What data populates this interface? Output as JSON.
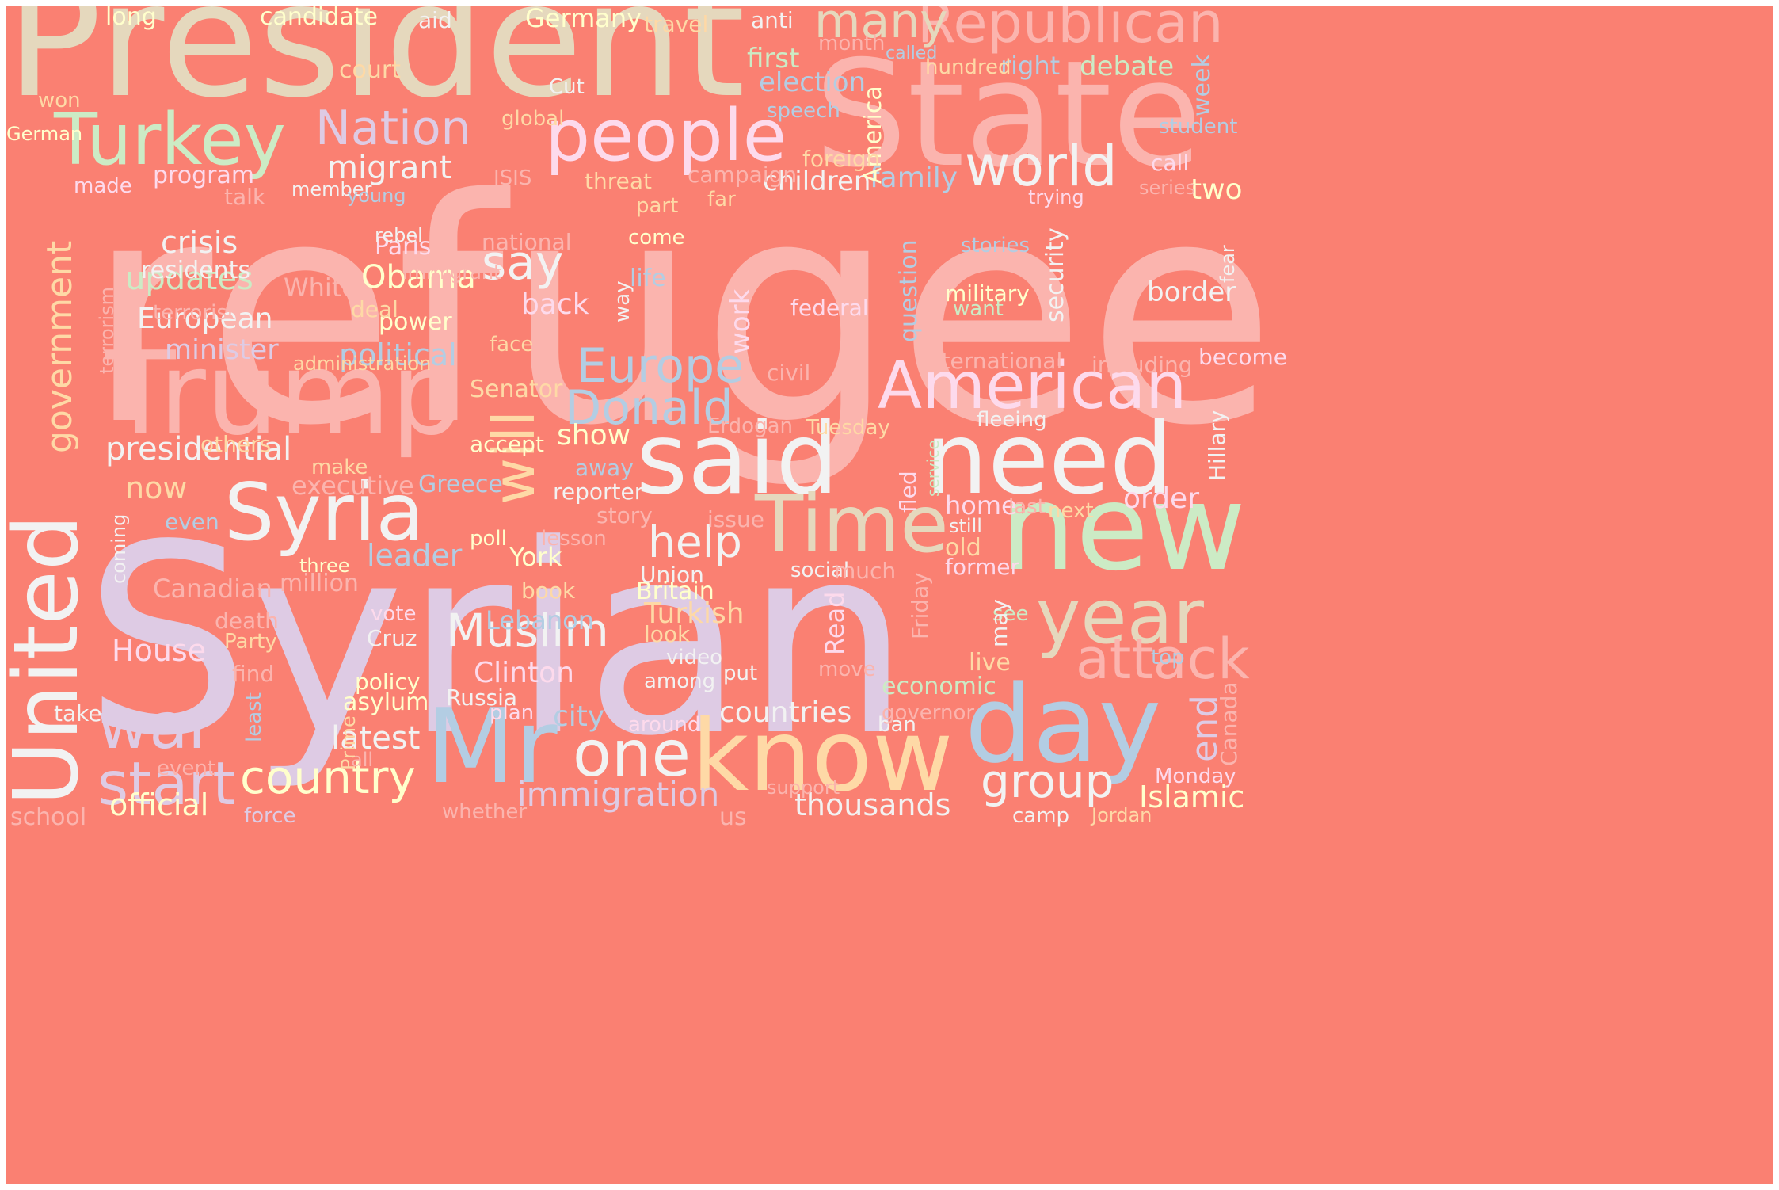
{
  "words": [
    {
      "text": "refugee",
      "color": "#fbb4ae"
    },
    {
      "text": "Syrian",
      "color": "#decbe4"
    },
    {
      "text": "President",
      "color": "#e5d8bd"
    },
    {
      "text": "State",
      "color": "#fbb4ae"
    },
    {
      "text": "Trump",
      "color": "#fbb4ae"
    },
    {
      "text": "new",
      "color": "#ccebc5"
    },
    {
      "text": "need",
      "color": "#f2f2f2"
    },
    {
      "text": "said",
      "color": "#f2f2f2"
    },
    {
      "text": "know",
      "color": "#fed9a6"
    },
    {
      "text": "day",
      "color": "#b3cde3"
    },
    {
      "text": "Mr",
      "color": "#b3cde3"
    },
    {
      "text": "United",
      "color": "#f2f2f2"
    },
    {
      "text": "Syria",
      "color": "#f2f2f2"
    },
    {
      "text": "Time",
      "color": "#e5d8bd"
    },
    {
      "text": "American",
      "color": "#fddaec"
    },
    {
      "text": "people",
      "color": "#fddaec"
    },
    {
      "text": "year",
      "color": "#e5d8bd"
    },
    {
      "text": "Turkey",
      "color": "#ccebc5"
    },
    {
      "text": "will",
      "color": "#fed9a6"
    },
    {
      "text": "attack",
      "color": "#fbb4ae"
    },
    {
      "text": "war",
      "color": "#decbe4"
    },
    {
      "text": "start",
      "color": "#decbe4"
    },
    {
      "text": "one",
      "color": "#f2f2f2"
    },
    {
      "text": "world",
      "color": "#f2f2f2"
    },
    {
      "text": "Republican",
      "color": "#fbb4ae"
    },
    {
      "text": "Muslim",
      "color": "#f2f2f2"
    },
    {
      "text": "country",
      "color": "#ffffcc"
    },
    {
      "text": "Europe",
      "color": "#b3cde3"
    },
    {
      "text": "Donald",
      "color": "#b3cde3"
    },
    {
      "text": "Nation",
      "color": "#decbe4"
    },
    {
      "text": "many",
      "color": "#e5d8bd"
    },
    {
      "text": "group",
      "color": "#f2f2f2"
    },
    {
      "text": "government",
      "color": "#fed9a6"
    },
    {
      "text": "say",
      "color": "#f2f2f2"
    },
    {
      "text": "help",
      "color": "#f2f2f2"
    },
    {
      "text": "end",
      "color": "#decbe4"
    },
    {
      "text": "presidential",
      "color": "#f2f2f2"
    },
    {
      "text": "immigration",
      "color": "#decbe4"
    },
    {
      "text": "latest",
      "color": "#f2f2f2"
    },
    {
      "text": "Clinton",
      "color": "#fddaec"
    },
    {
      "text": "updates",
      "color": "#ccebc5"
    },
    {
      "text": "Obama",
      "color": "#ffffcc"
    },
    {
      "text": "migrant",
      "color": "#f2f2f2"
    },
    {
      "text": "crisis",
      "color": "#f2f2f2"
    },
    {
      "text": "thousands",
      "color": "#f2f2f2"
    },
    {
      "text": "official",
      "color": "#ffffcc"
    },
    {
      "text": "Islamic",
      "color": "#ffffcc"
    },
    {
      "text": "countries",
      "color": "#f2f2f2"
    },
    {
      "text": "House",
      "color": "#fddaec"
    },
    {
      "text": "Turkish",
      "color": "#fed9a6"
    },
    {
      "text": "European",
      "color": "#f2f2f2"
    },
    {
      "text": "political",
      "color": "#b3cde3"
    },
    {
      "text": "minister",
      "color": "#decbe4"
    },
    {
      "text": "leader",
      "color": "#b3cde3"
    },
    {
      "text": "family",
      "color": "#b3cde3"
    },
    {
      "text": "border",
      "color": "#f2f2f2"
    },
    {
      "text": "order",
      "color": "#fddaec"
    },
    {
      "text": "now",
      "color": "#fed9a6"
    },
    {
      "text": "back",
      "color": "#fddaec"
    },
    {
      "text": "city",
      "color": "#b3cde3"
    },
    {
      "text": "show",
      "color": "#ffffcc"
    },
    {
      "text": "two",
      "color": "#ffffcc"
    },
    {
      "text": "debate",
      "color": "#ccebc5"
    },
    {
      "text": "first",
      "color": "#ccebc5"
    },
    {
      "text": "election",
      "color": "#b3cde3"
    },
    {
      "text": "children",
      "color": "#f2f2f2"
    },
    {
      "text": "work",
      "color": "#fddaec"
    },
    {
      "text": "million",
      "color": "#fbb4ae"
    },
    {
      "text": "York",
      "color": "#ffffcc"
    },
    {
      "text": "home",
      "color": "#fddaec"
    },
    {
      "text": "Read",
      "color": "#fddaec"
    },
    {
      "text": "week",
      "color": "#b3cde3"
    },
    {
      "text": "right",
      "color": "#b3cde3"
    },
    {
      "text": "America",
      "color": "#ffffcc"
    },
    {
      "text": "Germany",
      "color": "#ffffcc"
    },
    {
      "text": "candidate",
      "color": "#ffffcc"
    },
    {
      "text": "long",
      "color": "#ffffcc"
    },
    {
      "text": "power",
      "color": "#ffffcc"
    },
    {
      "text": "Paris",
      "color": "#fddaec"
    },
    {
      "text": "White",
      "color": "#fbb4ae"
    },
    {
      "text": "program",
      "color": "#fddaec"
    },
    {
      "text": "security",
      "color": "#f2f2f2"
    },
    {
      "text": "Hillary",
      "color": "#f2f2f2"
    },
    {
      "text": "Canada",
      "color": "#fbb4ae"
    },
    {
      "text": "Canadian",
      "color": "#fbb4ae"
    },
    {
      "text": "Lebanon",
      "color": "#b3cde3"
    },
    {
      "text": "Greece",
      "color": "#b3cde3"
    },
    {
      "text": "reporter",
      "color": "#f2f2f2"
    },
    {
      "text": "Russia",
      "color": "#f2f2f2"
    },
    {
      "text": "policy",
      "color": "#ffffcc"
    },
    {
      "text": "asylum",
      "color": "#ffffcc"
    },
    {
      "text": "plan",
      "color": "#fddaec"
    },
    {
      "text": "economic",
      "color": "#ccebc5"
    },
    {
      "text": "ban",
      "color": "#f2f2f2"
    },
    {
      "text": "live",
      "color": "#fed9a6"
    },
    {
      "text": "old",
      "color": "#fed9a6"
    },
    {
      "text": "former",
      "color": "#fddaec"
    },
    {
      "text": "look",
      "color": "#fed9a6"
    },
    {
      "text": "Britain",
      "color": "#ffffcc"
    },
    {
      "text": "Union",
      "color": "#f2f2f2"
    },
    {
      "text": "Senator",
      "color": "#fed9a6"
    },
    {
      "text": "national",
      "color": "#fbb4ae"
    },
    {
      "text": "residents",
      "color": "#f2f2f2"
    },
    {
      "text": "terrorist",
      "color": "#fbb4ae"
    },
    {
      "text": "deal",
      "color": "#fed9a6"
    },
    {
      "text": "face",
      "color": "#fed9a6"
    },
    {
      "text": "life",
      "color": "#b3cde3"
    },
    {
      "text": "come",
      "color": "#ffffcc"
    },
    {
      "text": "way",
      "color": "#f2f2f2"
    },
    {
      "text": "campaign",
      "color": "#fbb4ae"
    },
    {
      "text": "threat",
      "color": "#fed9a6"
    },
    {
      "text": "foreign",
      "color": "#fed9a6"
    },
    {
      "text": "speech",
      "color": "#b3cde3"
    },
    {
      "text": "hundred",
      "color": "#fed9a6"
    },
    {
      "text": "called",
      "color": "#b3cde3"
    },
    {
      "text": "month",
      "color": "#fbb4ae"
    },
    {
      "text": "anti",
      "color": "#f2f2f2"
    },
    {
      "text": "travel",
      "color": "#fed9a6"
    },
    {
      "text": "aid",
      "color": "#f2f2f2"
    },
    {
      "text": "court",
      "color": "#fed9a6"
    },
    {
      "text": "Cut",
      "color": "#f2f2f2"
    },
    {
      "text": "global",
      "color": "#fed9a6"
    },
    {
      "text": "won",
      "color": "#fed9a6"
    },
    {
      "text": "German",
      "color": "#ffffcc"
    },
    {
      "text": "made",
      "color": "#fddaec"
    },
    {
      "text": "talk",
      "color": "#fbb4ae"
    },
    {
      "text": "member",
      "color": "#f2f2f2"
    },
    {
      "text": "young",
      "color": "#b3cde3"
    },
    {
      "text": "ISIS",
      "color": "#fbb4ae"
    },
    {
      "text": "far",
      "color": "#fed9a6"
    },
    {
      "text": "part",
      "color": "#fed9a6"
    },
    {
      "text": "rebel",
      "color": "#f2f2f2"
    },
    {
      "text": "immigrant",
      "color": "#fbb4ae"
    },
    {
      "text": "question",
      "color": "#b3cde3"
    },
    {
      "text": "federal",
      "color": "#fddaec"
    },
    {
      "text": "military",
      "color": "#ffffcc"
    },
    {
      "text": "want",
      "color": "#ccebc5"
    },
    {
      "text": "stories",
      "color": "#b3cde3"
    },
    {
      "text": "student",
      "color": "#b3cde3"
    },
    {
      "text": "call",
      "color": "#fddaec"
    },
    {
      "text": "series",
      "color": "#fbb4ae"
    },
    {
      "text": "trying",
      "color": "#fddaec"
    },
    {
      "text": "fear",
      "color": "#f2f2f2"
    },
    {
      "text": "become",
      "color": "#fddaec"
    },
    {
      "text": "including",
      "color": "#fbb4ae"
    },
    {
      "text": "international",
      "color": "#fbb4ae"
    },
    {
      "text": "fleeing",
      "color": "#f2f2f2"
    },
    {
      "text": "civil",
      "color": "#fbb4ae"
    },
    {
      "text": "Tuesday",
      "color": "#fed9a6"
    },
    {
      "text": "Erdogan",
      "color": "#fbb4ae"
    },
    {
      "text": "service",
      "color": "#ccebc5"
    },
    {
      "text": "fled",
      "color": "#fddaec"
    },
    {
      "text": "last",
      "color": "#fbb4ae"
    },
    {
      "text": "next",
      "color": "#fed9a6"
    },
    {
      "text": "still",
      "color": "#f2f2f2"
    },
    {
      "text": "issue",
      "color": "#fbb4ae"
    },
    {
      "text": "story",
      "color": "#fbb4ae"
    },
    {
      "text": "lesson",
      "color": "#fbb4ae"
    },
    {
      "text": "poll",
      "color": "#ffffcc"
    },
    {
      "text": "book",
      "color": "#fed9a6"
    },
    {
      "text": "social",
      "color": "#f2f2f2"
    },
    {
      "text": "much",
      "color": "#fbb4ae"
    },
    {
      "text": "see",
      "color": "#ccebc5"
    },
    {
      "text": "may",
      "color": "#f2f2f2"
    },
    {
      "text": "Friday",
      "color": "#fbb4ae"
    },
    {
      "text": "top",
      "color": "#b3cde3"
    },
    {
      "text": "move",
      "color": "#fbb4ae"
    },
    {
      "text": "put",
      "color": "#f2f2f2"
    },
    {
      "text": "video",
      "color": "#f2f2f2"
    },
    {
      "text": "among",
      "color": "#f2f2f2"
    },
    {
      "text": "around",
      "color": "#fddaec"
    },
    {
      "text": "governor",
      "color": "#fbb4ae"
    },
    {
      "text": "Monday",
      "color": "#fddaec"
    },
    {
      "text": "camp",
      "color": "#f2f2f2"
    },
    {
      "text": "Jordan",
      "color": "#fed9a6"
    },
    {
      "text": "us",
      "color": "#fbb4ae"
    },
    {
      "text": "support",
      "color": "#fbb4ae"
    },
    {
      "text": "whether",
      "color": "#fbb4ae"
    },
    {
      "text": "force",
      "color": "#decbe4"
    },
    {
      "text": "school",
      "color": "#fbb4ae"
    },
    {
      "text": "event",
      "color": "#fbb4ae"
    },
    {
      "text": "all",
      "color": "#fbb4ae"
    },
    {
      "text": "Prime",
      "color": "#fed9a6"
    },
    {
      "text": "least",
      "color": "#b3cde3"
    },
    {
      "text": "take",
      "color": "#f2f2f2"
    },
    {
      "text": "find",
      "color": "#fbb4ae"
    },
    {
      "text": "Party",
      "color": "#fed9a6"
    },
    {
      "text": "Cruz",
      "color": "#f2f2f2"
    },
    {
      "text": "vote",
      "color": "#fddaec"
    },
    {
      "text": "death",
      "color": "#fbb4ae"
    },
    {
      "text": "coming",
      "color": "#f2f2f2"
    },
    {
      "text": "three",
      "color": "#ffffcc"
    },
    {
      "text": "even",
      "color": "#b3cde3"
    },
    {
      "text": "executive",
      "color": "#fbb4ae"
    },
    {
      "text": "make",
      "color": "#fed9a6"
    },
    {
      "text": "others",
      "color": "#fed9a6"
    },
    {
      "text": "accept",
      "color": "#ffffcc"
    },
    {
      "text": "away",
      "color": "#b3cde3"
    },
    {
      "text": "administration",
      "color": "#fed9a6"
    },
    {
      "text": "terrorism",
      "color": "#fbb4ae"
    }
  ]
}
